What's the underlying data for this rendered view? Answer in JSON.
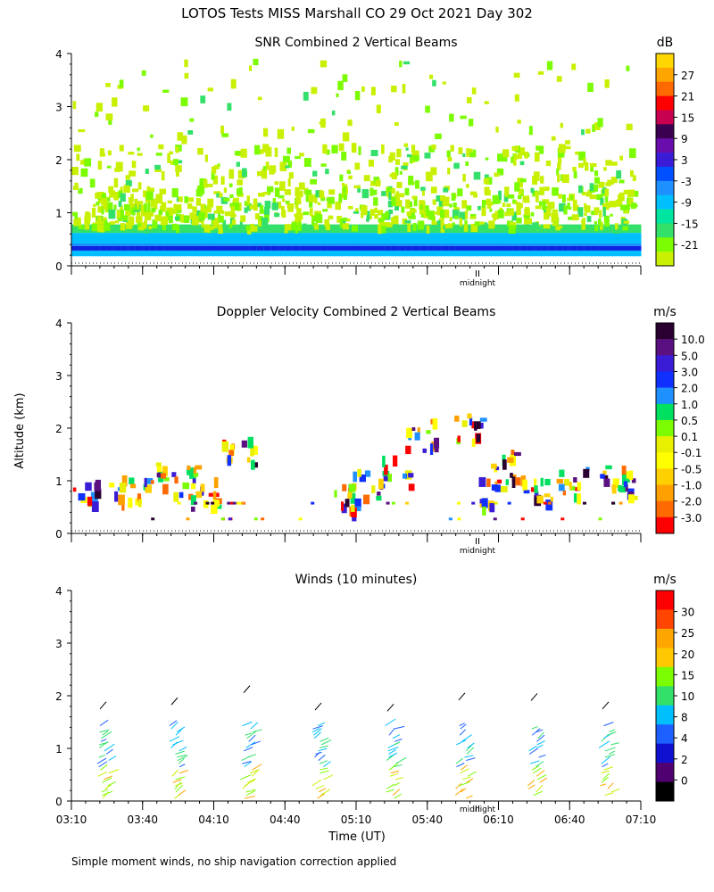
{
  "page_title": "LOTOS Tests MISS Marshall CO  29 Oct 2021 Day 302",
  "footnote": "Simple moment winds, no ship navigation correction applied",
  "chart_data": [
    {
      "type": "heatmap",
      "title": "SNR Combined 2 Vertical Beams",
      "ylabel": "",
      "ylim": [
        0,
        4
      ],
      "yticks": [
        "0",
        "1",
        "2",
        "3",
        "4"
      ],
      "colorbar": {
        "unit": "dB",
        "ticks": [
          "27",
          "21",
          "15",
          "9",
          "3",
          "-3",
          "-9",
          "-15",
          "-21"
        ],
        "colors": [
          "#ffd700",
          "#ffa500",
          "#ff6a00",
          "#ff0000",
          "#c80050",
          "#3c0050",
          "#6a0dad",
          "#3a1cd6",
          "#0050ff",
          "#1e90ff",
          "#00bfff",
          "#00e5a0",
          "#32e06a",
          "#7cfc00",
          "#c8f000"
        ]
      },
      "annotation": "midnight"
    },
    {
      "type": "heatmap",
      "title": "Doppler Velocity Combined 2 Vertical Beams",
      "ylabel": "Altitude (km)",
      "ylim": [
        0,
        4
      ],
      "yticks": [
        "0",
        "1",
        "2",
        "3",
        "4"
      ],
      "colorbar": {
        "unit": "m/s",
        "ticks": [
          "10.0",
          "5.0",
          "3.0",
          "2.0",
          "1.0",
          "0.5",
          "0.1",
          "-0.1",
          "-0.5",
          "-1.0",
          "-2.0",
          "-3.0"
        ],
        "colors": [
          "#2a0030",
          "#5a1080",
          "#3a1cd6",
          "#1030ff",
          "#1e90ff",
          "#00e060",
          "#7cfc00",
          "#e8f000",
          "#ffff00",
          "#ffd000",
          "#ffa000",
          "#ff6a00",
          "#ff0000"
        ]
      },
      "annotation": "midnight"
    },
    {
      "type": "scatter",
      "title": "Winds (10 minutes)",
      "xlabel": "Time (UT)",
      "ylim": [
        0,
        4
      ],
      "yticks": [
        "0",
        "1",
        "2",
        "3",
        "4"
      ],
      "xticks": [
        "03:10",
        "03:40",
        "04:10",
        "04:40",
        "05:10",
        "05:40",
        "06:10",
        "06:40",
        "07:10"
      ],
      "colorbar": {
        "unit": "m/s",
        "ticks": [
          "30",
          "25",
          "20",
          "15",
          "10",
          "8",
          "4",
          "2",
          "0"
        ],
        "colors": [
          "#ff0000",
          "#ff4500",
          "#ffa500",
          "#ffc800",
          "#7cfc00",
          "#32e06a",
          "#00bfff",
          "#1e60ff",
          "#1010d0",
          "#500070",
          "#000000"
        ]
      },
      "annotation": "midnight",
      "profile_times": [
        "03:25",
        "03:45",
        "04:15",
        "04:45",
        "05:25",
        "05:55",
        "06:25",
        "06:55"
      ]
    }
  ]
}
